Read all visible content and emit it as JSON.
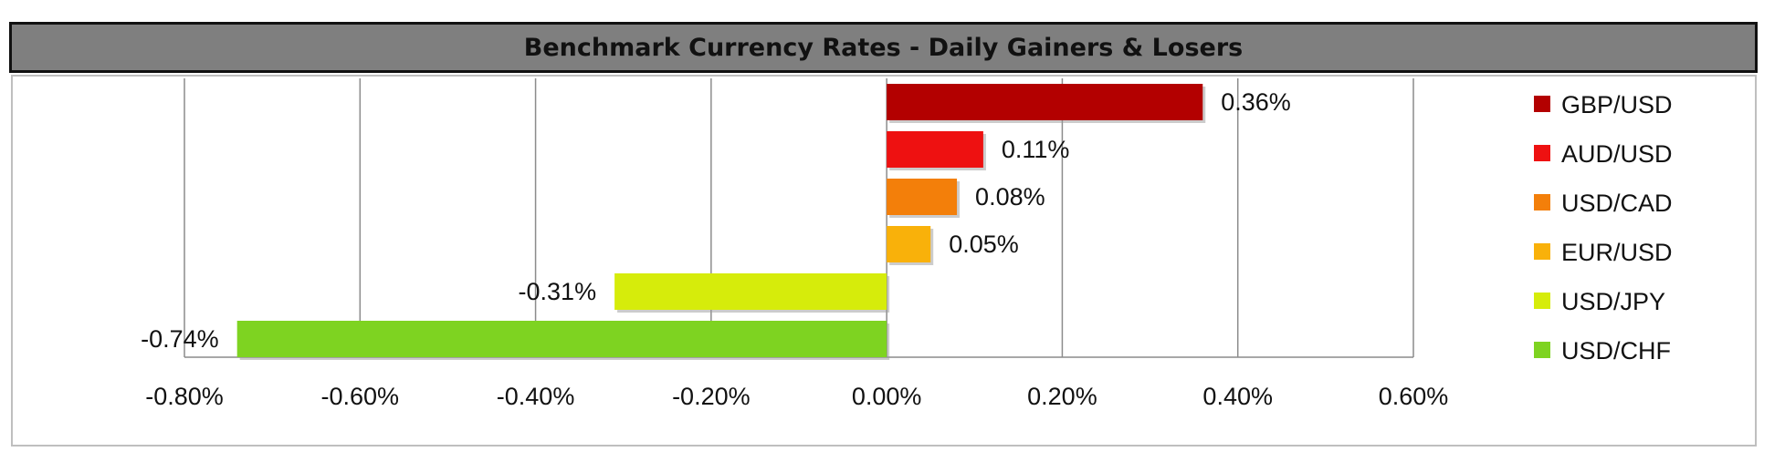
{
  "chart_data": {
    "type": "bar",
    "orientation": "horizontal",
    "title": "Benchmark Currency Rates - Daily Gainers & Losers",
    "categories": [
      "GBP/USD",
      "AUD/USD",
      "USD/CAD",
      "EUR/USD",
      "USD/JPY",
      "USD/CHF"
    ],
    "values": [
      0.36,
      0.11,
      0.08,
      0.05,
      -0.31,
      -0.74
    ],
    "data_labels": [
      "0.36%",
      "0.11%",
      "0.08%",
      "0.05%",
      "-0.31%",
      "-0.74%"
    ],
    "colors": [
      "#b30000",
      "#ee1111",
      "#f37f0a",
      "#f9b10a",
      "#d6ec0b",
      "#7ed321"
    ],
    "xlim": [
      -0.8,
      0.6
    ],
    "xticks": [
      -0.8,
      -0.6,
      -0.4,
      -0.2,
      0.0,
      0.2,
      0.4,
      0.6
    ],
    "xtick_labels": [
      "-0.80%",
      "-0.60%",
      "-0.40%",
      "-0.20%",
      "0.00%",
      "0.20%",
      "0.40%",
      "0.60%"
    ],
    "grid": true,
    "legend_position": "right"
  }
}
